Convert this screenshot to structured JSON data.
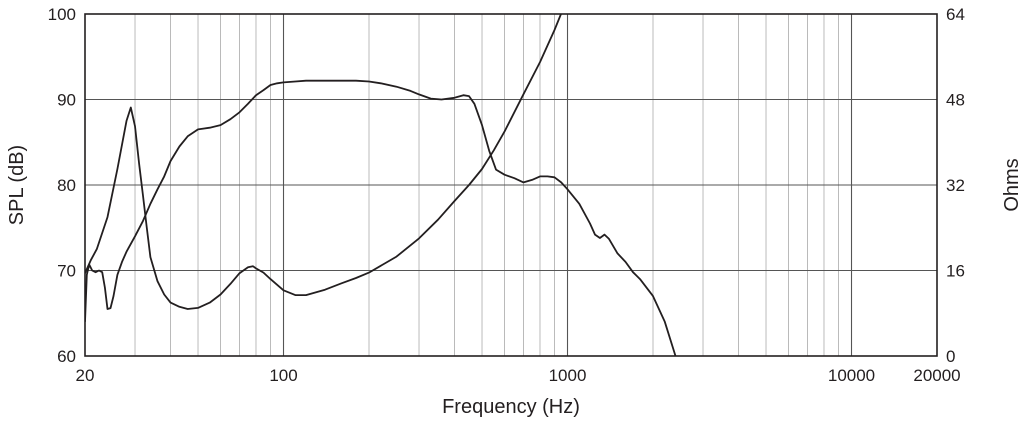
{
  "chart_data": {
    "type": "line",
    "title": "",
    "xlabel": "Frequency (Hz)",
    "ylabel": "SPL (dB)",
    "y2label": "Ohms",
    "x_scale": "log",
    "xlim": [
      20,
      20000
    ],
    "ylim": [
      60,
      100
    ],
    "y2lim": [
      0,
      64
    ],
    "grid": true,
    "x_ticks": [
      {
        "value": 20,
        "label": "20"
      },
      {
        "value": 100,
        "label": "100"
      },
      {
        "value": 1000,
        "label": "1000"
      },
      {
        "value": 10000,
        "label": "10000"
      },
      {
        "value": 20000,
        "label": "20000"
      }
    ],
    "y_ticks": [
      {
        "value": 60,
        "label": "60"
      },
      {
        "value": 70,
        "label": "70"
      },
      {
        "value": 80,
        "label": "80"
      },
      {
        "value": 90,
        "label": "90"
      },
      {
        "value": 100,
        "label": "100"
      }
    ],
    "y2_ticks": [
      {
        "value": 0,
        "label": "0"
      },
      {
        "value": 16,
        "label": "16"
      },
      {
        "value": 32,
        "label": "32"
      },
      {
        "value": 48,
        "label": "48"
      },
      {
        "value": 64,
        "label": "64"
      }
    ],
    "series": [
      {
        "axis": "left",
        "x": [
          20,
          20.3,
          20.7,
          21.2,
          21.8,
          22.4,
          23,
          23.5,
          24,
          24.6,
          25.2,
          26,
          27,
          28,
          30,
          32,
          34,
          36,
          38,
          40,
          43,
          46,
          50,
          55,
          60,
          65,
          70,
          75,
          80,
          85,
          90,
          95,
          100,
          110,
          120,
          130,
          140,
          150,
          160,
          170,
          180,
          200,
          220,
          250,
          280,
          300,
          330,
          360,
          400,
          430,
          450,
          470,
          500,
          530,
          560,
          600,
          650,
          700,
          750,
          800,
          850,
          900,
          950,
          1000,
          1100,
          1200,
          1250,
          1300,
          1350,
          1400,
          1500,
          1600,
          1700,
          1800,
          2000,
          2200,
          2400
        ],
        "y": [
          64.0,
          69.5,
          70.7,
          70.0,
          69.8,
          70.0,
          69.8,
          68.0,
          65.5,
          65.6,
          67.0,
          69.5,
          71.0,
          72.2,
          74.0,
          75.8,
          77.8,
          79.5,
          81.0,
          82.8,
          84.5,
          85.7,
          86.5,
          86.7,
          87.0,
          87.7,
          88.5,
          89.5,
          90.5,
          91.1,
          91.7,
          91.9,
          92.0,
          92.1,
          92.2,
          92.2,
          92.2,
          92.2,
          92.2,
          92.2,
          92.2,
          92.1,
          91.9,
          91.5,
          91.0,
          90.6,
          90.1,
          90.0,
          90.2,
          90.5,
          90.4,
          89.5,
          87.0,
          84.0,
          81.8,
          81.2,
          80.8,
          80.3,
          80.6,
          81.0,
          81.0,
          80.9,
          80.3,
          79.5,
          77.8,
          75.5,
          74.2,
          73.8,
          74.2,
          73.7,
          72.0,
          71.0,
          69.8,
          69.0,
          67.0,
          64.0,
          60.0
        ]
      },
      {
        "axis": "right",
        "x": [
          20,
          21,
          22,
          24,
          26,
          28,
          29,
          30,
          31,
          32,
          33,
          34,
          36,
          38,
          40,
          43,
          46,
          50,
          55,
          60,
          65,
          70,
          75,
          78,
          80,
          85,
          90,
          100,
          110,
          120,
          140,
          160,
          180,
          200,
          250,
          300,
          350,
          400,
          450,
          500,
          550,
          600,
          700,
          800,
          900,
          1000
        ],
        "y": [
          15.5,
          18.0,
          20.0,
          26.0,
          35.0,
          44.0,
          46.5,
          43.0,
          36.0,
          30.0,
          24.0,
          18.5,
          14.0,
          11.5,
          10.0,
          9.2,
          8.8,
          9.0,
          10.0,
          11.5,
          13.5,
          15.5,
          16.6,
          16.8,
          16.4,
          15.6,
          14.4,
          12.3,
          11.4,
          11.4,
          12.4,
          13.6,
          14.6,
          15.6,
          18.6,
          22.0,
          25.5,
          29.0,
          32.0,
          35.0,
          38.5,
          42.0,
          49.0,
          55.0,
          61.0,
          67.0
        ]
      }
    ]
  }
}
